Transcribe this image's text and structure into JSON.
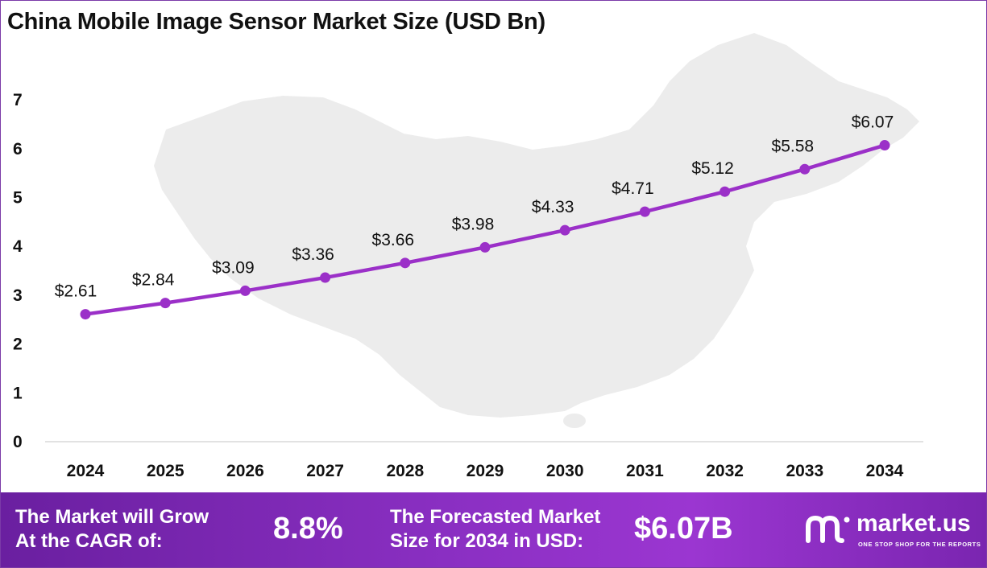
{
  "chart_data": {
    "type": "line",
    "title": "China Mobile Image Sensor Market Size (USD Bn)",
    "categories": [
      "2024",
      "2025",
      "2026",
      "2027",
      "2028",
      "2029",
      "2030",
      "2031",
      "2032",
      "2033",
      "2034"
    ],
    "values": [
      2.61,
      2.84,
      3.09,
      3.36,
      3.66,
      3.98,
      4.33,
      4.71,
      5.12,
      5.58,
      6.07
    ],
    "data_labels": [
      "$2.61",
      "$2.84",
      "$3.09",
      "$3.36",
      "$3.66",
      "$3.98",
      "$4.33",
      "$4.71",
      "$5.12",
      "$5.58",
      "$6.07"
    ],
    "yticks": [
      "0",
      "1",
      "2",
      "3",
      "4",
      "5",
      "6",
      "7"
    ],
    "ylim": [
      0,
      7
    ],
    "xlabel": "",
    "ylabel": "",
    "line_color": "#9b30c8",
    "grid": false
  },
  "footer": {
    "cagr_label_line1": "The Market will Grow",
    "cagr_label_line2": "At the CAGR of:",
    "cagr_value": "8.8%",
    "forecast_label_line1": "The Forecasted Market",
    "forecast_label_line2": "Size for 2034 in USD:",
    "forecast_value": "$6.07B",
    "brand_name": "market.us",
    "brand_tagline": "ONE STOP SHOP FOR THE REPORTS"
  },
  "colors": {
    "accent": "#9b30c8",
    "footer_start": "#6a1fa0",
    "footer_end": "#9b36d1"
  }
}
